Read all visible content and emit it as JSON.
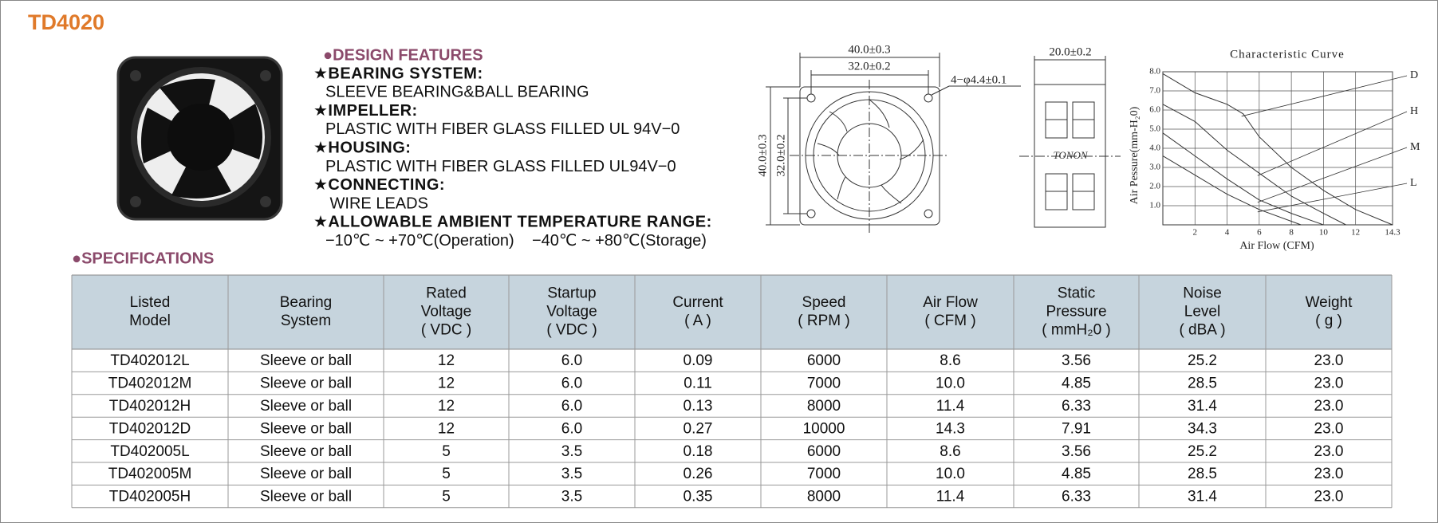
{
  "header": {
    "title": "TD4020"
  },
  "design_features": {
    "heading": "●DESIGN FEATURES",
    "items": [
      {
        "title": "★BEARING SYSTEM:",
        "text": "SLEEVE BEARING&BALL BEARING"
      },
      {
        "title": "★IMPELLER:",
        "text": "PLASTIC WITH FIBER GLASS FILLED UL 94V−0"
      },
      {
        "title": "★HOUSING:",
        "text": "PLASTIC WITH FIBER GLASS FILLED UL94V−0"
      },
      {
        "title": "★CONNECTING:",
        "text": " WIRE LEADS"
      },
      {
        "title": "★ALLOWABLE AMBIENT TEMPERATURE RANGE:",
        "text": "−10℃ ~ +70℃(Operation)    −40℃ ~ +80℃(Storage)"
      }
    ]
  },
  "drawings": {
    "front": {
      "width": "40.0±0.3",
      "hole_spacing": "32.0±0.2",
      "holes": "4−φ4.4±0.1",
      "height": "40.0±0.3",
      "hole_spacing_v": "32.0±0.2"
    },
    "side": {
      "depth": "20.0±0.2",
      "logo": "TONON"
    }
  },
  "chart_data": {
    "type": "line",
    "title": "Characteristic Curve",
    "x_label": "Air Flow (CFM)",
    "y_label": "Air Pessure(mm-H₂0)",
    "xlim": [
      0,
      14.3
    ],
    "ylim": [
      0,
      8.0
    ],
    "xticks": [
      2,
      4,
      6,
      8,
      10,
      12,
      14.3
    ],
    "yticks": [
      {
        "value": 1,
        "label": "1.0"
      },
      {
        "value": 2,
        "label": "2.0"
      },
      {
        "value": 3,
        "label": "3.0"
      },
      {
        "value": 4,
        "label": "4.0"
      },
      {
        "value": 5,
        "label": "5.0"
      },
      {
        "value": 6,
        "label": "6.0"
      },
      {
        "value": 7,
        "label": "7.0"
      },
      {
        "value": 8,
        "label": "8.0"
      }
    ],
    "grid": true,
    "series": [
      {
        "name": "D",
        "color": "#333333",
        "x": [
          0,
          2,
          4,
          5,
          6,
          8,
          10,
          12,
          14.3
        ],
        "values": [
          7.9,
          6.9,
          6.3,
          5.8,
          4.6,
          3.0,
          1.8,
          0.8,
          0
        ]
      },
      {
        "name": "H",
        "color": "#333333",
        "x": [
          0,
          2,
          4,
          6,
          8,
          10,
          11.4
        ],
        "values": [
          6.3,
          5.4,
          3.9,
          2.7,
          1.5,
          0.6,
          0
        ]
      },
      {
        "name": "M",
        "color": "#333333",
        "x": [
          0,
          2,
          4,
          6,
          8,
          10
        ],
        "values": [
          4.8,
          3.6,
          2.4,
          1.3,
          0.6,
          0
        ]
      },
      {
        "name": "L",
        "color": "#333333",
        "x": [
          0,
          2,
          4,
          6,
          8.6
        ],
        "values": [
          3.6,
          2.6,
          1.6,
          0.8,
          0
        ]
      }
    ]
  },
  "specifications": {
    "heading": "●SPECIFICATIONS",
    "table": {
      "header": [
        [
          "Listed",
          "Model"
        ],
        [
          "Bearing",
          "System"
        ],
        [
          "Rated",
          "Voltage",
          "( VDC )"
        ],
        [
          "Startup",
          "Voltage",
          "( VDC )"
        ],
        [
          "Current",
          "( A )"
        ],
        [
          "Speed",
          "( RPM )"
        ],
        [
          "Air Flow",
          "( CFM )"
        ],
        [
          "Static",
          "Pressure",
          "( mmH₂0 )"
        ],
        [
          "Noise",
          "Level",
          "( dBA )"
        ],
        [
          "Weight",
          "( g )"
        ]
      ],
      "rows": [
        [
          "TD402012L",
          "Sleeve or ball",
          "12",
          "6.0",
          "0.09",
          "6000",
          "8.6",
          "3.56",
          "25.2",
          "23.0"
        ],
        [
          "TD402012M",
          "Sleeve or ball",
          "12",
          "6.0",
          "0.11",
          "7000",
          "10.0",
          "4.85",
          "28.5",
          "23.0"
        ],
        [
          "TD402012H",
          "Sleeve or ball",
          "12",
          "6.0",
          "0.13",
          "8000",
          "11.4",
          "6.33",
          "31.4",
          "23.0"
        ],
        [
          "TD402012D",
          "Sleeve or ball",
          "12",
          "6.0",
          "0.27",
          "10000",
          "14.3",
          "7.91",
          "34.3",
          "23.0"
        ],
        [
          "TD402005L",
          "Sleeve or ball",
          "5",
          "3.5",
          "0.18",
          "6000",
          "8.6",
          "3.56",
          "25.2",
          "23.0"
        ],
        [
          "TD402005M",
          "Sleeve or ball",
          "5",
          "3.5",
          "0.26",
          "7000",
          "10.0",
          "4.85",
          "28.5",
          "23.0"
        ],
        [
          "TD402005H",
          "Sleeve or ball",
          "5",
          "3.5",
          "0.35",
          "8000",
          "11.4",
          "6.33",
          "31.4",
          "23.0"
        ]
      ]
    }
  }
}
